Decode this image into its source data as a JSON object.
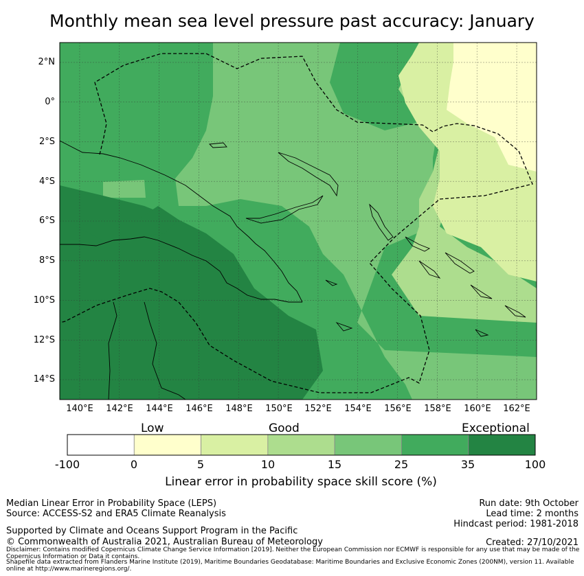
{
  "title": "Monthly mean sea level pressure past accuracy: January",
  "map": {
    "lat_labels": [
      "2°N",
      "0°",
      "2°S",
      "4°S",
      "6°S",
      "8°S",
      "10°S",
      "12°S",
      "14°S"
    ],
    "lon_labels": [
      "140°E",
      "142°E",
      "144°E",
      "146°E",
      "148°E",
      "150°E",
      "152°E",
      "154°E",
      "156°E",
      "158°E",
      "160°E",
      "162°E"
    ],
    "lat_range": [
      -15,
      3
    ],
    "lon_range": [
      139,
      163
    ],
    "colors": {
      "cat_0_5": "#ffffcc",
      "cat_5_10": "#d9f0a3",
      "cat_10_15": "#addd8e",
      "cat_15_25": "#78c679",
      "cat_25_35": "#41ab5d",
      "cat_35_100": "#238443",
      "boundary": "#000000"
    }
  },
  "colorbar": {
    "category_labels": [
      "Low",
      "Good",
      "Exceptional"
    ],
    "ticks": [
      "-100",
      "0",
      "5",
      "10",
      "15",
      "25",
      "35",
      "100"
    ],
    "colors": [
      "#ffffff",
      "#ffffcc",
      "#d9f0a3",
      "#addd8e",
      "#78c679",
      "#41ab5d",
      "#238443"
    ],
    "label": "Linear error in probability space skill score (%)"
  },
  "info": {
    "left_line1": "Median Linear Error in Probability Space (LEPS)",
    "left_line2": "Source: ACCESS-S2 and ERA5 Climate Reanalysis",
    "support": "Supported by Climate and Oceans Support Program in the Pacific",
    "copyright": "© Commonwealth of Australia 2021, Australian Bureau of Meteorology",
    "run_date": "Run date: 9th October",
    "lead_time": "Lead time: 2 months",
    "hindcast": "Hindcast period: 1981-2018",
    "created": "Created: 27/10/2021",
    "disclaimer1": "Disclaimer: Contains modified Copernicus Climate Change Service Information [2019]. Neither the European Commission nor ECMWF is responsible for any use that may be made of the Copernicus Information or Data it contains.",
    "disclaimer2": "Shapefile data extracted from Flanders Marine Institute (2019), Maritime Boundaries Geodatabase: Maritime Boundaries and Exclusive Economic Zones (200NM), version 11. Available online at http://www.marineregions.org/."
  }
}
